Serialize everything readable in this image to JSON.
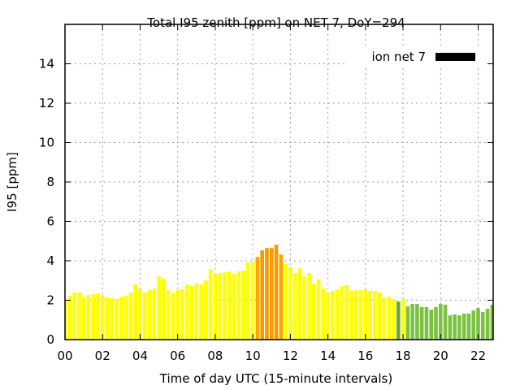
{
  "chart_data": {
    "type": "bar",
    "title": "Total I95 zenith [ppm] on NET 7, DoY=294",
    "xlabel": "Time of day UTC (15-minute intervals)",
    "ylabel": "I95 [ppm]",
    "xlim": [
      0,
      22.8
    ],
    "ylim": [
      0,
      16
    ],
    "grid": true,
    "legend": {
      "label": "ion net 7",
      "color": "#000000",
      "placement": "top-right"
    },
    "x_ticks": [
      "00",
      "02",
      "04",
      "06",
      "08",
      "10",
      "12",
      "14",
      "16",
      "18",
      "20",
      "22"
    ],
    "x_tick_values": [
      0,
      2,
      4,
      6,
      8,
      10,
      12,
      14,
      16,
      18,
      20,
      22
    ],
    "y_ticks": [
      "0",
      "2",
      "4",
      "6",
      "8",
      "10",
      "12",
      "14"
    ],
    "y_tick_values": [
      0,
      2,
      4,
      6,
      8,
      10,
      12,
      14
    ],
    "interval_hours": 0.25,
    "values": [
      2.0,
      2.22,
      2.39,
      2.39,
      2.18,
      2.26,
      2.3,
      2.35,
      2.26,
      2.14,
      2.1,
      2.06,
      2.18,
      2.22,
      2.39,
      2.8,
      2.55,
      2.39,
      2.51,
      2.59,
      3.21,
      3.09,
      2.51,
      2.39,
      2.51,
      2.55,
      2.8,
      2.72,
      2.84,
      2.8,
      3.0,
      3.58,
      3.33,
      3.37,
      3.42,
      3.46,
      3.33,
      3.46,
      3.5,
      3.91,
      3.95,
      4.2,
      4.53,
      4.65,
      4.65,
      4.81,
      4.32,
      3.83,
      3.66,
      3.37,
      3.62,
      3.21,
      3.37,
      2.84,
      3.05,
      2.59,
      2.39,
      2.47,
      2.55,
      2.72,
      2.76,
      2.47,
      2.51,
      2.51,
      2.55,
      2.47,
      2.47,
      2.39,
      2.14,
      2.18,
      2.06,
      1.93,
      2.06,
      1.69,
      1.81,
      1.81,
      1.65,
      1.65,
      1.52,
      1.65,
      1.81,
      1.77,
      1.23,
      1.28,
      1.23,
      1.32,
      1.32,
      1.48,
      1.6,
      1.4,
      1.56,
      1.77
    ],
    "colors": {
      "yellow": "#ffff00",
      "orange": "#ffa500",
      "dark_orange": "#f59a00",
      "green": "#7cc242",
      "dark_green": "#66aa33"
    },
    "bar_color_keys": {
      "orange": [
        41,
        46
      ],
      "dark_orange": [
        42,
        43,
        44,
        45
      ],
      "dark_green": [
        71
      ],
      "green": [
        73,
        74,
        75,
        76,
        77,
        78,
        79,
        80,
        81,
        82,
        83,
        84,
        85,
        86,
        87,
        88,
        89,
        90,
        91
      ]
    }
  }
}
